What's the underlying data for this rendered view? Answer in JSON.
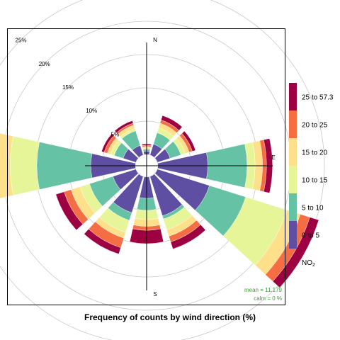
{
  "chart_data": {
    "type": "polar-stacked-bar",
    "title": "Frequency of counts by wind direction (%)",
    "compass": [
      "N",
      "E",
      "S"
    ],
    "ring_labels": [
      "5%",
      "10%",
      "15%",
      "20%",
      "25%"
    ],
    "ring_values": [
      5,
      10,
      15,
      20,
      25
    ],
    "rmax": 25,
    "legend": {
      "title_main": "NO",
      "title_sub": "2",
      "categories": [
        "0 to 5",
        "5 to 10",
        "10 to 15",
        "15 to 20",
        "20 to 25",
        "25 to 57.3"
      ],
      "colors": [
        "#5e4fa2",
        "#66c2a5",
        "#e6f598",
        "#fee08b",
        "#f46d43",
        "#9e0142"
      ]
    },
    "stats": {
      "mean": "mean = 11.179",
      "calm": "calm = 0 %"
    },
    "sectors": [
      {
        "direction": 0,
        "cumulative": [
          0.5,
          0.8,
          1.0,
          1.2,
          1.4,
          1.6
        ]
      },
      {
        "direction": 30,
        "cumulative": [
          1.7,
          3.5,
          4.3,
          5.0,
          5.5,
          6.2
        ]
      },
      {
        "direction": 60,
        "cumulative": [
          2.0,
          3.7,
          4.4,
          5.0,
          5.5,
          6.0
        ]
      },
      {
        "direction": 90,
        "cumulative": [
          7.5,
          13.4,
          14.6,
          15.7,
          16.3,
          17.2
        ]
      },
      {
        "direction": 120,
        "cumulative": [
          8.2,
          13.9,
          20.4,
          22.5,
          24.0,
          25.4
        ]
      },
      {
        "direction": 150,
        "cumulative": [
          6.2,
          6.7,
          8.4,
          9.4,
          10.3,
          11.4
        ]
      },
      {
        "direction": 180,
        "cumulative": [
          3.2,
          5.0,
          6.4,
          7.4,
          8.0,
          10.0
        ]
      },
      {
        "direction": 210,
        "cumulative": [
          5.7,
          6.9,
          8.8,
          9.7,
          11.2,
          12.2
        ]
      },
      {
        "direction": 240,
        "cumulative": [
          3.6,
          7.3,
          8.8,
          10.2,
          11.3,
          12.6
        ]
      },
      {
        "direction": 270,
        "cumulative": [
          6.7,
          14.8,
          18.8,
          21.4,
          22.7,
          24.0
        ]
      },
      {
        "direction": 300,
        "cumulative": [
          2.0,
          3.4,
          4.0,
          4.5,
          5.0,
          5.4
        ]
      },
      {
        "direction": 330,
        "cumulative": [
          1.5,
          3.8,
          4.2,
          4.7,
          5.0,
          5.4
        ]
      }
    ]
  }
}
